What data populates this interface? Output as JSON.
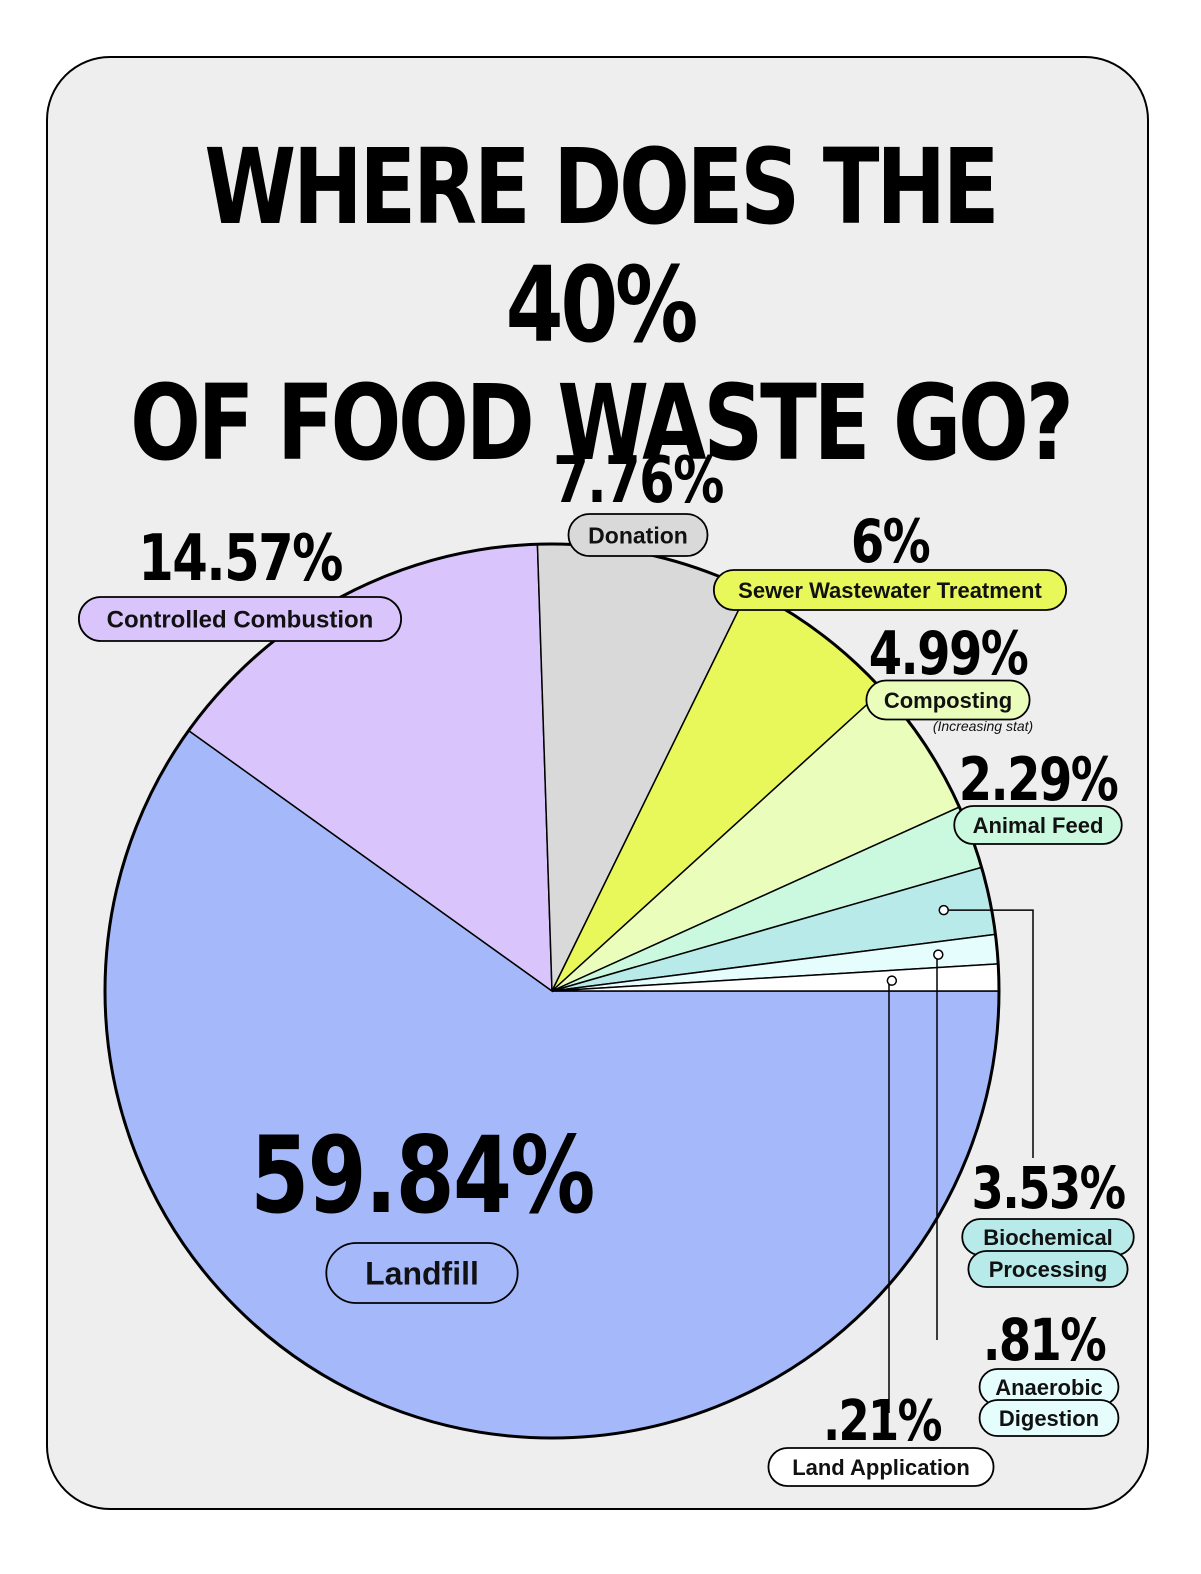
{
  "title": {
    "line1": "WHERE DOES THE 40%",
    "line2": "OF FOOD WASTE GO?"
  },
  "chart_data": {
    "type": "pie",
    "slices": [
      {
        "label": "Landfill",
        "value": 59.84,
        "value_text": "59.84%",
        "color": "#a5b8fa"
      },
      {
        "label": "Controlled Combustion",
        "value": 14.57,
        "value_text": "14.57%",
        "color": "#d9c5fb"
      },
      {
        "label": "Donation",
        "value": 7.76,
        "value_text": "7.76%",
        "color": "#d9d9d9"
      },
      {
        "label": "Sewer Wastewater Treatment",
        "value": 6,
        "value_text": "6%",
        "color": "#e8f85a"
      },
      {
        "label": "Composting",
        "value": 4.99,
        "value_text": "4.99%",
        "color": "#eafdbb",
        "note": "(Increasing stat)"
      },
      {
        "label": "Animal Feed",
        "value": 2.29,
        "value_text": "2.29%",
        "color": "#cbf9e0"
      },
      {
        "label": "Biochemical Processing",
        "label_lines": [
          "Biochemical",
          "Processing"
        ],
        "value": 3.53,
        "value_text": "3.53%",
        "color": "#b9eaea"
      },
      {
        "label": "Anaerobic Digestion",
        "label_lines": [
          "Anaerobic",
          "Digestion"
        ],
        "value": 0.81,
        "value_text": ".81%",
        "color": "#e6fdfd"
      },
      {
        "label": "Land Application",
        "value": 0.21,
        "value_text": ".21%",
        "color": "#ffffff"
      }
    ]
  }
}
